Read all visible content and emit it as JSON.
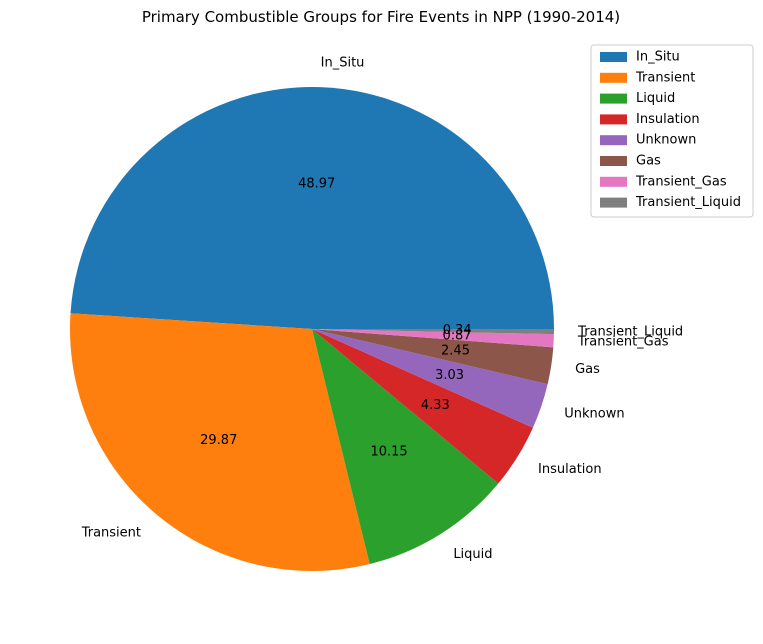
{
  "chart_data": {
    "type": "pie",
    "title": "Primary Combustible Groups for Fire Events in NPP (1990-2014)",
    "categories": [
      "In_Situ",
      "Transient",
      "Liquid",
      "Insulation",
      "Unknown",
      "Gas",
      "Transient_Gas",
      "Transient_Liquid"
    ],
    "values": [
      48.97,
      29.87,
      10.15,
      4.33,
      3.03,
      2.45,
      0.87,
      0.34
    ],
    "value_labels": [
      "48.97",
      "29.87",
      "10.15",
      "4.33",
      "3.03",
      "2.45",
      "0.87",
      "0.34"
    ],
    "colors": [
      "#1f77b4",
      "#ff7f0e",
      "#2ca02c",
      "#d62728",
      "#9467bd",
      "#8c564b",
      "#e377c2",
      "#7f7f7f"
    ],
    "start_angle_deg": 0,
    "direction": "counterclockwise",
    "legend": {
      "placement": "top-right"
    }
  }
}
